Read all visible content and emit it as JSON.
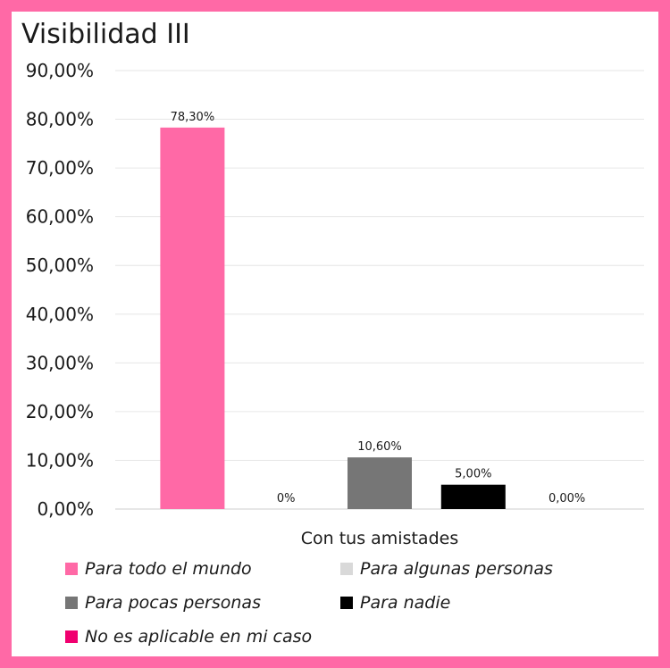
{
  "chart_data": {
    "type": "bar",
    "title": "Visibilidad III",
    "categories": [
      "Con tus amistades"
    ],
    "ylim": [
      0,
      90
    ],
    "yticks": [
      "0,00%",
      "10,00%",
      "20,00%",
      "30,00%",
      "40,00%",
      "50,00%",
      "60,00%",
      "70,00%",
      "80,00%",
      "90,00%"
    ],
    "grid": true,
    "legend_position": "bottom",
    "series": [
      {
        "name": "Para todo el mundo",
        "values": [
          78.3
        ],
        "label": "78,30%",
        "color": "#ff69a6"
      },
      {
        "name": "Para algunas personas",
        "values": [
          0
        ],
        "label": "0%",
        "color": "#d9d9d9"
      },
      {
        "name": "Para pocas personas",
        "values": [
          10.6
        ],
        "label": "10,60%",
        "color": "#767676"
      },
      {
        "name": "Para nadie",
        "values": [
          5.0
        ],
        "label": "5,00%",
        "color": "#000000"
      },
      {
        "name": "No es aplicable en mi caso",
        "values": [
          0
        ],
        "label": "0,00%",
        "color": "#f0006f"
      }
    ]
  }
}
